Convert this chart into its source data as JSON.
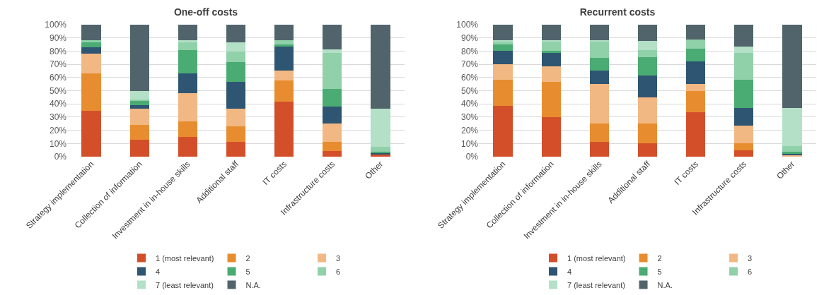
{
  "chart_data": [
    {
      "type": "bar",
      "title": "One-off costs",
      "stacked": true,
      "grid": "y",
      "legend": "bottom",
      "categories": [
        "Strategy implementation",
        "Collection of information",
        "Investment in in-house skills",
        "Additional staff",
        "IT costs",
        "Infrastructure costs",
        "Other"
      ],
      "ylim": [
        0,
        100
      ],
      "yticks": [
        {
          "value": 0,
          "label": "0%"
        },
        {
          "value": 10,
          "label": "10%"
        },
        {
          "value": 20,
          "label": "20%"
        },
        {
          "value": 30,
          "label": "30%"
        },
        {
          "value": 40,
          "label": "40%"
        },
        {
          "value": 50,
          "label": "50%"
        },
        {
          "value": 60,
          "label": "60%"
        },
        {
          "value": 70,
          "label": "70%"
        },
        {
          "value": 80,
          "label": "80%"
        },
        {
          "value": 90,
          "label": "90%"
        },
        {
          "value": 100,
          "label": "100%"
        }
      ],
      "series": [
        {
          "name": "1 (most relevant)",
          "color": "#d34f2a",
          "values": [
            35,
            13,
            15,
            11.5,
            41.5,
            4.5,
            2
          ]
        },
        {
          "name": "2",
          "color": "#e88d2f",
          "values": [
            28,
            11,
            11.5,
            11.5,
            16.5,
            7,
            0
          ]
        },
        {
          "name": "3",
          "color": "#f2b884",
          "values": [
            15,
            12.5,
            21.5,
            13.5,
            7,
            13.5,
            0
          ]
        },
        {
          "name": "4",
          "color": "#2e5572",
          "values": [
            5,
            2.5,
            15,
            20,
            18.5,
            13,
            1
          ]
        },
        {
          "name": "5",
          "color": "#4aab73",
          "values": [
            4,
            3,
            18,
            15,
            1.5,
            13.5,
            1
          ]
        },
        {
          "name": "6",
          "color": "#90d1aa",
          "values": [
            1,
            1.5,
            5.5,
            8,
            3,
            27,
            3.5
          ]
        },
        {
          "name": "7 (least relevant)",
          "color": "#b3e0c7",
          "values": [
            0,
            6.5,
            1.5,
            7,
            0,
            3,
            29
          ]
        },
        {
          "name": "N.A.",
          "color": "#51646b",
          "values": [
            12,
            50,
            12,
            13.5,
            12,
            18.5,
            63.5
          ]
        }
      ]
    },
    {
      "type": "bar",
      "title": "Recurrent costs",
      "stacked": true,
      "grid": "y",
      "legend": "bottom",
      "categories": [
        "Strategy implementation",
        "Collection of information",
        "Investment in in-house skills",
        "Additional staff",
        "IT costs",
        "Infrastructure costs",
        "Other"
      ],
      "ylim": [
        0,
        100
      ],
      "yticks": [
        {
          "value": 0,
          "label": "0%"
        },
        {
          "value": 10,
          "label": "10%"
        },
        {
          "value": 20,
          "label": "20%"
        },
        {
          "value": 30,
          "label": "30%"
        },
        {
          "value": 40,
          "label": "40%"
        },
        {
          "value": 50,
          "label": "50%"
        },
        {
          "value": 60,
          "label": "60%"
        },
        {
          "value": 70,
          "label": "70%"
        },
        {
          "value": 80,
          "label": "80%"
        },
        {
          "value": 90,
          "label": "90%"
        },
        {
          "value": 100,
          "label": "100%"
        }
      ],
      "series": [
        {
          "name": "1 (most relevant)",
          "color": "#d34f2a",
          "values": [
            38.5,
            30,
            11.5,
            10,
            33.5,
            5,
            0
          ]
        },
        {
          "name": "2",
          "color": "#e88d2f",
          "values": [
            20,
            26.5,
            13.5,
            15,
            16.5,
            5,
            0
          ]
        },
        {
          "name": "3",
          "color": "#f2b884",
          "values": [
            11.5,
            12,
            30,
            20,
            5,
            13.5,
            1.5
          ]
        },
        {
          "name": "4",
          "color": "#2e5572",
          "values": [
            10,
            10,
            10,
            16.5,
            17,
            13.5,
            1
          ]
        },
        {
          "name": "5",
          "color": "#4aab73",
          "values": [
            5,
            1.5,
            10,
            14,
            10,
            21.5,
            1
          ]
        },
        {
          "name": "6",
          "color": "#90d1aa",
          "values": [
            2,
            7,
            12,
            5,
            7,
            20,
            4.5
          ]
        },
        {
          "name": "7 (least relevant)",
          "color": "#b3e0c7",
          "values": [
            1.5,
            1.5,
            1.5,
            7,
            0,
            5,
            29
          ]
        },
        {
          "name": "N.A.",
          "color": "#51646b",
          "values": [
            11.5,
            11.5,
            11.5,
            12.5,
            11,
            16.5,
            63
          ]
        }
      ]
    }
  ]
}
